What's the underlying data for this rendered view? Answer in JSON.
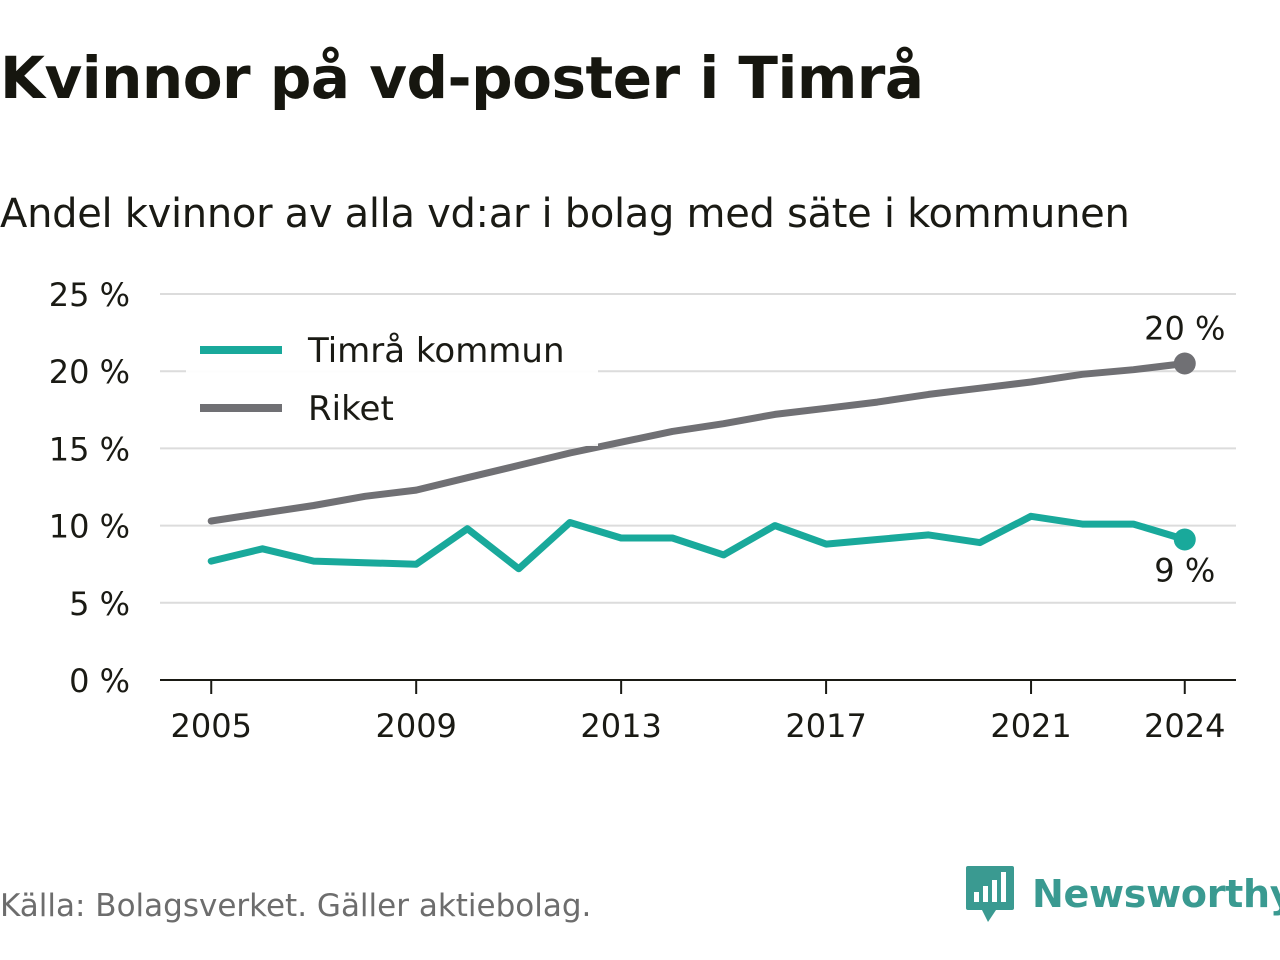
{
  "title": "Kvinnor på vd-poster i Timrå",
  "subtitle": "Andel kvinnor av alla vd:ar i bolag med säte i kommunen",
  "source": "Källa: Bolagsverket. Gäller aktiebolag.",
  "brand": {
    "name": "Newsworthy",
    "color": "#3a9a91",
    "logo_icon": "bar-chart-speech-bubble-icon"
  },
  "chart_data": {
    "type": "line",
    "x": [
      2005,
      2006,
      2007,
      2008,
      2009,
      2010,
      2011,
      2012,
      2013,
      2014,
      2015,
      2016,
      2017,
      2018,
      2019,
      2020,
      2021,
      2022,
      2023,
      2024
    ],
    "series": [
      {
        "name": "Timrå kommun",
        "color": "#19a99b",
        "values": [
          7.7,
          8.5,
          7.7,
          7.6,
          7.5,
          9.8,
          7.2,
          10.2,
          9.2,
          9.2,
          8.1,
          10.0,
          8.8,
          9.1,
          9.4,
          8.9,
          10.6,
          10.1,
          10.1,
          9.1
        ],
        "end_label": "9 %"
      },
      {
        "name": "Riket",
        "color": "#707074",
        "values": [
          10.3,
          10.8,
          11.3,
          11.9,
          12.3,
          13.1,
          13.9,
          14.7,
          15.4,
          16.1,
          16.6,
          17.2,
          17.6,
          18.0,
          18.5,
          18.9,
          19.3,
          19.8,
          20.1,
          20.5
        ],
        "end_label": "20 %"
      }
    ],
    "xticks": [
      "2005",
      "2009",
      "2013",
      "2017",
      "2021",
      "2024"
    ],
    "xtick_values": [
      2005,
      2009,
      2013,
      2017,
      2021,
      2024
    ],
    "yticks": [
      "0 %",
      "5 %",
      "10 %",
      "15 %",
      "20 %",
      "25 %"
    ],
    "ytick_values": [
      0,
      5,
      10,
      15,
      20,
      25
    ],
    "ylim": [
      0,
      25
    ],
    "xlim": [
      2004.0,
      2025.0
    ],
    "grid": true,
    "legend_position": "top-left",
    "xlabel": "",
    "ylabel": ""
  }
}
